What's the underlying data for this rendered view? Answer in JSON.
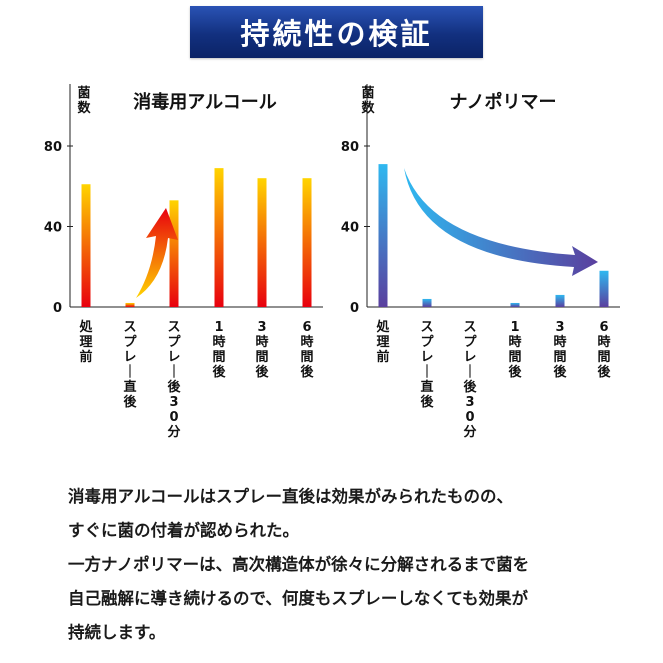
{
  "header": {
    "title": "持続性の検証"
  },
  "chart_data": [
    {
      "type": "bar",
      "title": "消毒用アルコール",
      "ylabel": "菌数",
      "ylim": [
        0,
        80
      ],
      "yticks": [
        "0",
        "40",
        "80"
      ],
      "categories": [
        "処理前",
        "スプレー直後",
        "スプレー後30分",
        "1時間後",
        "3時間後",
        "6時間後"
      ],
      "values": [
        61,
        2,
        53,
        69,
        64,
        64
      ],
      "bar_gradient": [
        "#ffd400",
        "#e8000e"
      ],
      "annotation": {
        "type": "arrow",
        "from_category": "スプレー直後",
        "to_category": "スプレー後30分",
        "direction": "up",
        "colors": [
          "#ffd400",
          "#e8000e"
        ]
      }
    },
    {
      "type": "bar",
      "title": "ナノポリマー",
      "ylabel": "菌数",
      "ylim": [
        0,
        80
      ],
      "yticks": [
        "0",
        "40",
        "80"
      ],
      "categories": [
        "処理前",
        "スプレー直後",
        "スプレー後30分",
        "1時間後",
        "3時間後",
        "6時間後"
      ],
      "values": [
        71,
        4,
        0,
        2,
        6,
        18
      ],
      "bar_gradient": [
        "#2fb8f0",
        "#5a3f9e"
      ],
      "annotation": {
        "type": "arrow",
        "from_category": "処理前",
        "to_category": "6時間後",
        "direction": "down-right",
        "colors": [
          "#2fb8f0",
          "#5a3f9e"
        ]
      }
    }
  ],
  "caption": {
    "lines": [
      "消毒用アルコールはスプレー直後は効果がみられたものの、",
      "すぐに菌の付着が認められた。",
      "一方ナノポリマーは、高次構造体が徐々に分解されるまで菌を",
      "自己融解に導き続けるので、何度もスプレーしなくても効果が",
      "持続します。"
    ]
  }
}
